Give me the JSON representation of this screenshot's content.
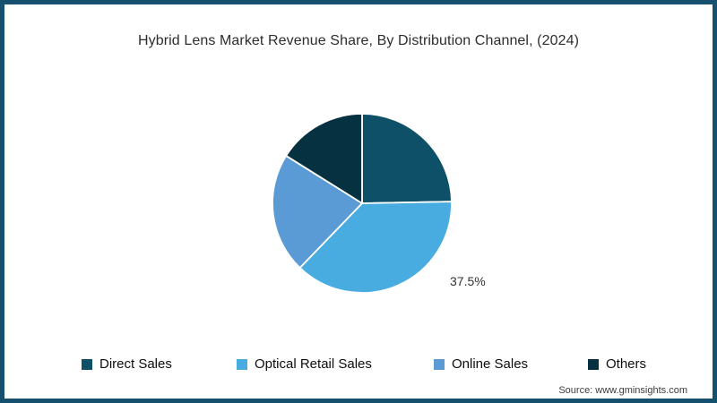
{
  "chart_data": {
    "type": "pie",
    "title": "Hybrid Lens Market Revenue Share, By Distribution Channel,  (2024)",
    "categories": [
      "Direct Sales",
      "Optical Retail Sales",
      "Online Sales",
      "Others"
    ],
    "values": [
      24.7,
      37.5,
      21.7,
      16.1
    ],
    "colors": [
      "#0e5068",
      "#49ace1",
      "#5b9bd5",
      "#063140"
    ],
    "start_angle_deg": 0,
    "direction": "clockwise",
    "legend_position": "bottom",
    "grid": false,
    "slice_label": {
      "text": "37.5%",
      "slice": "Optical Retail Sales"
    },
    "source": "Source: www.gminsights.com",
    "frame_border_color": "#15506e",
    "slice_separator_color": "#ffffff"
  }
}
